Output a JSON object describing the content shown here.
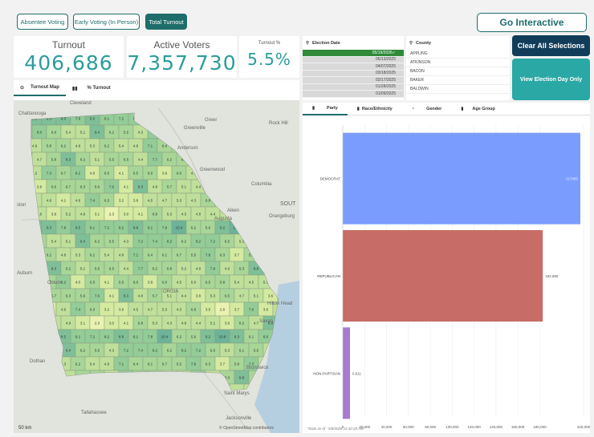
{
  "nav": {
    "tabs": [
      {
        "label": "Absentee Voting",
        "active": false
      },
      {
        "label": "Early Voting (In Person)",
        "active": false
      },
      {
        "label": "Total Turnout",
        "active": true
      }
    ],
    "go_interactive": "Go Interactive"
  },
  "kpis": {
    "turnout": {
      "label": "Turnout",
      "value": "406,686"
    },
    "active_voters": {
      "label": "Active Voters",
      "value": "7,357,730"
    },
    "turnout_pct": {
      "label": "Turnout %",
      "value": "5.5%"
    }
  },
  "map": {
    "tabs": [
      "Turnout Map",
      "% Turnout"
    ],
    "places": [
      "Cleveland",
      "Chattanooga",
      "Greer",
      "Rock Hill",
      "Greenville",
      "Anderson",
      "Greenwood",
      "Columbia",
      "SOUT",
      "Orangeburg",
      "Aiken",
      "Augusta",
      "ston",
      "Auburn",
      "Colum",
      "ORGIA",
      "Hilton Head",
      "Savan",
      "Dothan",
      "Tallahassee",
      "Jacksonville",
      "Saint Marys",
      "Brunswick"
    ],
    "scale": "50 km",
    "attribution": "© OpenStreetMap contributors",
    "county_values": [
      "8.8",
      "8.3",
      "9.3",
      "7.8",
      "8.5",
      "8.1",
      "7.2",
      "8.2",
      "8.8",
      "8.1",
      "7.8",
      "10.4",
      "6.2",
      "5.6",
      "9.2",
      "10.8",
      "8.3",
      "6.1",
      "8.0",
      "6.0",
      "5.4",
      "5.1",
      "9.4",
      "6.2",
      "5.5",
      "4.3",
      "7.2",
      "7.4",
      "8.2",
      "6.2",
      "8.2",
      "7.2",
      "6.5",
      "5.3",
      "6.1",
      "5.5",
      "4.9",
      "5.8",
      "6.2",
      "4.8",
      "5.3",
      "6.2",
      "5.4",
      "4.8",
      "7.1",
      "6.4",
      "6.1",
      "6.7",
      "5.5",
      "7.8",
      "6.3",
      "3.7",
      "5.8",
      "7.3",
      "4.7",
      "5.8",
      "8.3",
      "6.2",
      "5.1",
      "5.5",
      "6.5",
      "4.4",
      "7.7",
      "6.2",
      "6.8",
      "5.2",
      "4.9",
      "7.8",
      "4.6",
      "6.3",
      "8.8",
      "6.5",
      "5.2",
      "7.3",
      "6.7",
      "8.2",
      "4.0",
      "6.5",
      "4.1",
      "5.5",
      "6.0",
      "3.8",
      "6.0",
      "4.5",
      "5.0",
      "6.5",
      "5.8",
      "5.4",
      "4.5",
      "5.3",
      "3.9",
      "6.6",
      "6.7",
      "6.3",
      "5.6",
      "7.6",
      "4.1",
      "8.3",
      "4.8",
      "5.7",
      "5.1",
      "4.4",
      "3.8",
      "5.3",
      "6.5",
      "4.7",
      "5.1",
      "3.6",
      "5.0",
      "4.8",
      "4.1",
      "4.6",
      "7.4",
      "6.3",
      "3.2",
      "3.8",
      "4.5",
      "4.7",
      "5.3",
      "4.3",
      "6.8",
      "3.5",
      "2.6",
      "3.7",
      "7.0",
      "3.6",
      "4.6",
      "3.9",
      "5.2",
      "4.9",
      "3.1",
      "2.3",
      "3.0",
      "4.1",
      "6.8",
      "5.3",
      "4.3",
      "4.8",
      "4.4",
      "5.1",
      "3.6",
      "6.2",
      "4.7"
    ]
  },
  "filters": {
    "election_date": {
      "title": "Election Date",
      "items": [
        "05/19/2026",
        "05/13/2025",
        "04/07/2025",
        "03/18/2025",
        "02/17/2025",
        "01/28/2025",
        "01/09/2025"
      ],
      "selected_index": 0
    },
    "county": {
      "title": "County",
      "items": [
        "APPLING",
        "ATKINSON",
        "BACON",
        "BAKER",
        "BALDWIN"
      ]
    }
  },
  "actions": {
    "clear_all": "Clear All Selections",
    "view_election_day": "View Election Day Only"
  },
  "chart_tabs": [
    "Party",
    "Race/Ethnicity",
    "Gender",
    "Age Group"
  ],
  "colors": {
    "accent": "#1e6d6a",
    "kpi_value": "#2a9d9a",
    "democrat": "#7b9cff",
    "republican": "#c76c66",
    "non_partisan": "#a77bd1",
    "clear_btn": "#113d5a",
    "view_btn": "#2aa8a5"
  },
  "chart_data": {
    "type": "bar",
    "orientation": "horizontal",
    "categories": [
      "DEMOCRAT",
      "REPUBLICAN",
      "NON-PARTISAN"
    ],
    "values": [
      217050,
      182690,
      6611
    ],
    "value_labels": [
      "217050",
      "182,690",
      "6,611"
    ],
    "xlim": [
      0,
      220000
    ],
    "xticks": [
      0,
      20000,
      40000,
      60000,
      80000,
      100000,
      120000,
      140000,
      160000,
      180000,
      220000
    ],
    "xtick_labels": [
      "0",
      "20,000",
      "40,000",
      "60,000",
      "80,000",
      "100,000",
      "120,000",
      "140,000",
      "160,000",
      "180,000",
      "220,000"
    ],
    "grid": true
  },
  "footnote": "*Data as of : 5/8/2026 11:32:20 AM"
}
